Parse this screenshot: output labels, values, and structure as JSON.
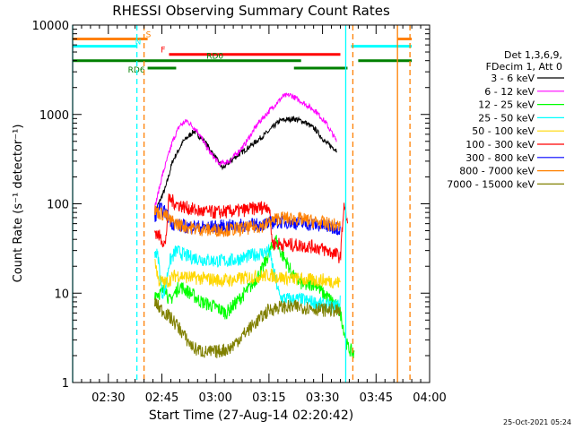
{
  "chart_data": {
    "type": "line",
    "title": "RHESSI Observing Summary Count Rates",
    "xlabel": "Start Time (27-Aug-14 02:20:42)",
    "ylabel": "Count Rate (s⁻¹ detector⁻¹)",
    "yscale": "log",
    "ylim": [
      1,
      10000
    ],
    "xlim_minutes_after_0220": [
      0,
      100
    ],
    "x_ticks": [
      {
        "m": 10,
        "label": "02:30"
      },
      {
        "m": 25,
        "label": "02:45"
      },
      {
        "m": 40,
        "label": "03:00"
      },
      {
        "m": 55,
        "label": "03:15"
      },
      {
        "m": 70,
        "label": "03:30"
      },
      {
        "m": 85,
        "label": "03:45"
      },
      {
        "m": 100,
        "label": "04:00"
      }
    ],
    "y_ticks": [
      {
        "v": 1,
        "label": "1"
      },
      {
        "v": 10,
        "label": "10"
      },
      {
        "v": 100,
        "label": "100"
      },
      {
        "v": 1000,
        "label": "1000"
      },
      {
        "v": 10000,
        "label": "10000"
      }
    ],
    "legend_header": [
      "Det 1,3,6,9,",
      "FDecim 1, Att 0"
    ],
    "series": [
      {
        "name": "3 - 6 keV",
        "color": "#000000",
        "points": [
          [
            23,
            80
          ],
          [
            26,
            150
          ],
          [
            28,
            300
          ],
          [
            31,
            500
          ],
          [
            34,
            650
          ],
          [
            37,
            500
          ],
          [
            40,
            330
          ],
          [
            42,
            250
          ],
          [
            45,
            320
          ],
          [
            50,
            450
          ],
          [
            55,
            650
          ],
          [
            58,
            850
          ],
          [
            62,
            900
          ],
          [
            65,
            820
          ],
          [
            68,
            680
          ],
          [
            71,
            480
          ],
          [
            74,
            400
          ]
        ]
      },
      {
        "name": "6 - 12 keV",
        "color": "#ff00ff",
        "points": [
          [
            23,
            90
          ],
          [
            25,
            200
          ],
          [
            28,
            500
          ],
          [
            30,
            750
          ],
          [
            32,
            850
          ],
          [
            35,
            650
          ],
          [
            38,
            400
          ],
          [
            41,
            280
          ],
          [
            44,
            300
          ],
          [
            48,
            450
          ],
          [
            52,
            800
          ],
          [
            56,
            1200
          ],
          [
            59,
            1600
          ],
          [
            61,
            1650
          ],
          [
            64,
            1400
          ],
          [
            68,
            1100
          ],
          [
            71,
            800
          ],
          [
            74,
            500
          ]
        ]
      },
      {
        "name": "12 - 25 keV",
        "color": "#00ff00",
        "points": [
          [
            23,
            10
          ],
          [
            25,
            10
          ],
          [
            26,
            12
          ],
          [
            27,
            8
          ],
          [
            30,
            12
          ],
          [
            33,
            10
          ],
          [
            36,
            8
          ],
          [
            40,
            7
          ],
          [
            43,
            6
          ],
          [
            46,
            8
          ],
          [
            50,
            12
          ],
          [
            53,
            18
          ],
          [
            55,
            28
          ],
          [
            57,
            40
          ],
          [
            58,
            30
          ],
          [
            60,
            22
          ],
          [
            62,
            15
          ],
          [
            65,
            12
          ],
          [
            68,
            13
          ],
          [
            70,
            10
          ],
          [
            73,
            8
          ],
          [
            75,
            6
          ],
          [
            77,
            2.5
          ],
          [
            79,
            2
          ]
        ]
      },
      {
        "name": "25 - 50 keV",
        "color": "#00ffff",
        "points": [
          [
            23,
            30
          ],
          [
            24,
            25
          ],
          [
            25,
            10
          ],
          [
            26,
            11
          ],
          [
            27,
            22
          ],
          [
            29,
            30
          ],
          [
            32,
            26
          ],
          [
            36,
            24
          ],
          [
            40,
            23
          ],
          [
            44,
            23
          ],
          [
            48,
            25
          ],
          [
            51,
            27
          ],
          [
            53,
            28
          ],
          [
            55,
            30
          ],
          [
            58,
            9
          ],
          [
            61,
            8.5
          ],
          [
            64,
            8.5
          ],
          [
            67,
            8
          ],
          [
            70,
            7.5
          ],
          [
            73,
            7
          ],
          [
            75,
            8
          ]
        ]
      },
      {
        "name": "50 - 100 keV",
        "color": "#ffd700",
        "points": [
          [
            23,
            25
          ],
          [
            24,
            14
          ],
          [
            26,
            13
          ],
          [
            29,
            16
          ],
          [
            33,
            15
          ],
          [
            37,
            14.5
          ],
          [
            41,
            14
          ],
          [
            45,
            14
          ],
          [
            49,
            15
          ],
          [
            53,
            15.5
          ],
          [
            55,
            16
          ],
          [
            58,
            15
          ],
          [
            62,
            14.5
          ],
          [
            66,
            14
          ],
          [
            70,
            14
          ],
          [
            73,
            13.5
          ],
          [
            75,
            13
          ]
        ]
      },
      {
        "name": "100 - 300 keV",
        "color": "#ff0000",
        "points": [
          [
            23,
            50
          ],
          [
            25,
            40
          ],
          [
            26,
            35
          ],
          [
            27,
            115
          ],
          [
            29,
            100
          ],
          [
            32,
            90
          ],
          [
            36,
            82
          ],
          [
            40,
            80
          ],
          [
            44,
            82
          ],
          [
            48,
            85
          ],
          [
            52,
            90
          ],
          [
            55,
            95
          ],
          [
            56,
            36
          ],
          [
            60,
            35
          ],
          [
            64,
            34
          ],
          [
            68,
            33
          ],
          [
            71,
            30
          ],
          [
            74,
            27
          ],
          [
            75,
            25
          ],
          [
            76,
            100
          ],
          [
            77,
            60
          ]
        ]
      },
      {
        "name": "300 - 800 keV",
        "color": "#0000ff",
        "points": [
          [
            23,
            70
          ],
          [
            24,
            90
          ],
          [
            26,
            80
          ],
          [
            28,
            60
          ],
          [
            31,
            56
          ],
          [
            35,
            55
          ],
          [
            39,
            55
          ],
          [
            43,
            56
          ],
          [
            47,
            57
          ],
          [
            51,
            58
          ],
          [
            55,
            60
          ],
          [
            56,
            62
          ],
          [
            58,
            63
          ],
          [
            61,
            62
          ],
          [
            64,
            60
          ],
          [
            68,
            58
          ],
          [
            71,
            56
          ],
          [
            74,
            54
          ],
          [
            75,
            52
          ]
        ]
      },
      {
        "name": "800 - 7000 keV",
        "color": "#ff8000",
        "points": [
          [
            23,
            85
          ],
          [
            24,
            80
          ],
          [
            26,
            75
          ],
          [
            27,
            66
          ],
          [
            30,
            58
          ],
          [
            34,
            53
          ],
          [
            38,
            51
          ],
          [
            42,
            51
          ],
          [
            46,
            52
          ],
          [
            50,
            54
          ],
          [
            54,
            58
          ],
          [
            56,
            65
          ],
          [
            58,
            70
          ],
          [
            61,
            68
          ],
          [
            64,
            67
          ],
          [
            68,
            63
          ],
          [
            71,
            60
          ],
          [
            74,
            57
          ],
          [
            75,
            55
          ]
        ]
      },
      {
        "name": "7000 - 15000 keV",
        "color": "#808000",
        "points": [
          [
            23,
            8
          ],
          [
            24,
            7
          ],
          [
            26,
            6
          ],
          [
            28,
            5
          ],
          [
            30,
            4
          ],
          [
            32,
            3
          ],
          [
            34,
            2.4
          ],
          [
            37,
            2.2
          ],
          [
            40,
            2.2
          ],
          [
            44,
            2.4
          ],
          [
            48,
            3.5
          ],
          [
            52,
            5
          ],
          [
            55,
            6.5
          ],
          [
            58,
            7
          ],
          [
            61,
            7
          ],
          [
            64,
            7
          ],
          [
            67,
            6.8
          ],
          [
            70,
            6.5
          ],
          [
            73,
            6.5
          ],
          [
            75,
            6
          ]
        ]
      }
    ],
    "flags": [
      {
        "label": "S",
        "color": "#ff8000",
        "value": 7000,
        "segments": [
          [
            0,
            21
          ],
          [
            91,
            95
          ]
        ]
      },
      {
        "label": "N",
        "color": "#00ffff",
        "value": 5800,
        "segments": [
          [
            0,
            18
          ],
          [
            78,
            95
          ]
        ]
      },
      {
        "label": "F",
        "color": "#ff0000",
        "value": 4700,
        "segments": [
          [
            27,
            75
          ]
        ]
      },
      {
        "label": "RD0",
        "color": "#008000",
        "value": 4000,
        "segments": [
          [
            0,
            64
          ],
          [
            80,
            95
          ]
        ]
      },
      {
        "label": "RD6",
        "color": "#008000",
        "value": 3300,
        "segments": [
          [
            21,
            29
          ],
          [
            62,
            77
          ]
        ]
      }
    ],
    "vertical_lines": [
      {
        "m": 0,
        "color": "#00ffff",
        "style": "solid"
      },
      {
        "m": 18,
        "color": "#00ffff",
        "style": "dashed"
      },
      {
        "m": 20,
        "color": "#ff8000",
        "style": "dashed"
      },
      {
        "m": 76.5,
        "color": "#00ffff",
        "style": "solid"
      },
      {
        "m": 78.5,
        "color": "#ff8000",
        "style": "dashed"
      },
      {
        "m": 91,
        "color": "#ff8000",
        "style": "solid"
      },
      {
        "m": 94.5,
        "color": "#ff8000",
        "style": "dashed"
      }
    ],
    "grid": false,
    "legend_position": "right"
  },
  "footer": {
    "timestamp": "25-Oct-2021 05:24"
  }
}
